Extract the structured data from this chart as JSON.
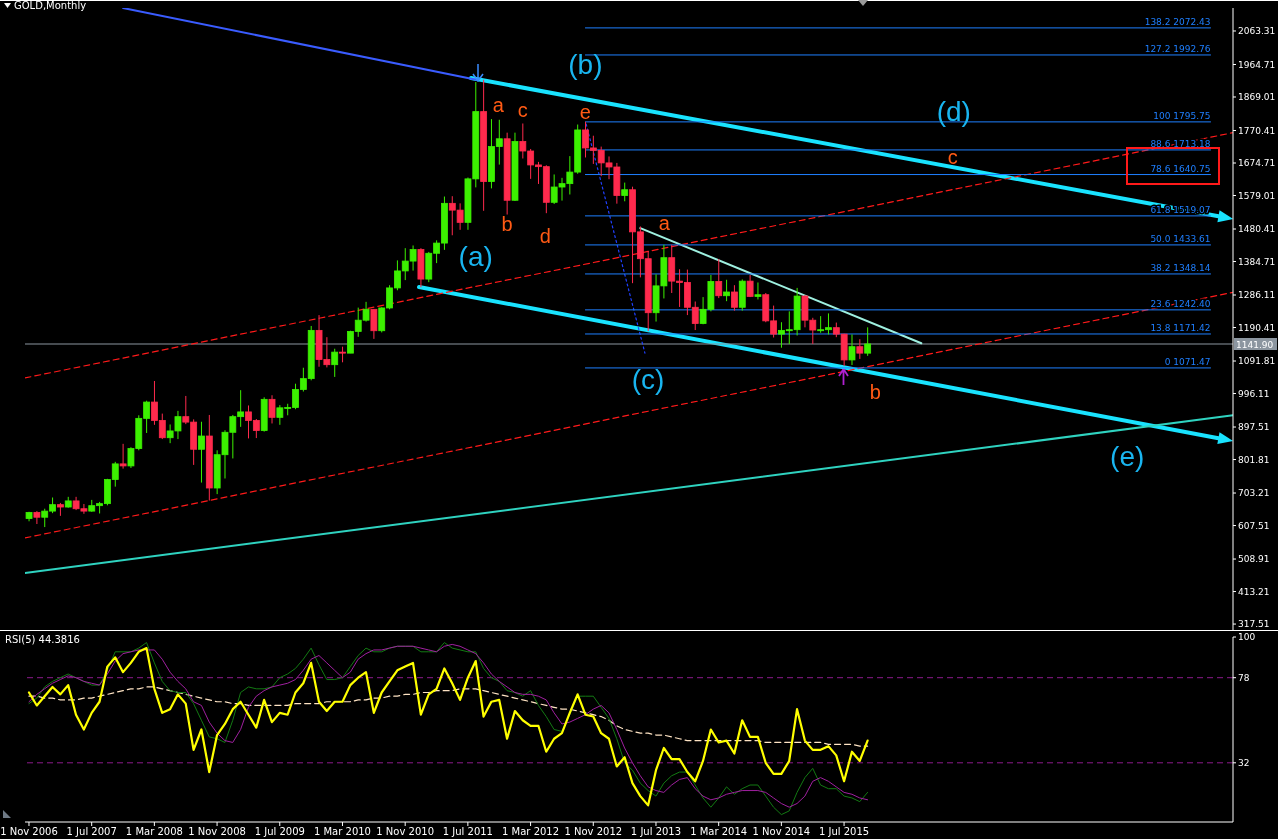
{
  "chart_data": [
    {
      "type": "candlestick",
      "title": "GOLD,Monthly",
      "x": [
        "2006-11",
        "2006-12",
        "2007-01",
        "2007-02",
        "2007-03",
        "2007-04",
        "2007-05",
        "2007-06",
        "2007-07",
        "2007-08",
        "2007-09",
        "2007-10",
        "2007-11",
        "2007-12",
        "2008-01",
        "2008-02",
        "2008-03",
        "2008-04",
        "2008-05",
        "2008-06",
        "2008-07",
        "2008-08",
        "2008-09",
        "2008-10",
        "2008-11",
        "2008-12",
        "2009-01",
        "2009-02",
        "2009-03",
        "2009-04",
        "2009-05",
        "2009-06",
        "2009-07",
        "2009-08",
        "2009-09",
        "2009-10",
        "2009-11",
        "2009-12",
        "2010-01",
        "2010-02",
        "2010-03",
        "2010-04",
        "2010-05",
        "2010-06",
        "2010-07",
        "2010-08",
        "2010-09",
        "2010-10",
        "2010-11",
        "2010-12",
        "2011-01",
        "2011-02",
        "2011-03",
        "2011-04",
        "2011-05",
        "2011-06",
        "2011-07",
        "2011-08",
        "2011-09",
        "2011-10",
        "2011-11",
        "2011-12",
        "2012-01",
        "2012-02",
        "2012-03",
        "2012-04",
        "2012-05",
        "2012-06",
        "2012-07",
        "2012-08",
        "2012-09",
        "2012-10",
        "2012-11",
        "2012-12",
        "2013-01",
        "2013-02",
        "2013-03",
        "2013-04",
        "2013-05",
        "2013-06",
        "2013-07",
        "2013-08",
        "2013-09",
        "2013-10",
        "2013-11",
        "2013-12",
        "2014-01",
        "2014-02",
        "2014-03",
        "2014-04",
        "2014-05",
        "2014-06",
        "2014-07",
        "2014-08",
        "2014-09",
        "2014-10",
        "2014-11",
        "2014-12",
        "2015-01",
        "2015-02",
        "2015-03",
        "2015-04",
        "2015-05",
        "2015-06",
        "2015-07",
        "2015-08",
        "2015-09",
        "2015-10"
      ],
      "ohlc": [
        [
          628,
          648,
          620,
          646
        ],
        [
          646,
          650,
          612,
          632
        ],
        [
          632,
          657,
          603,
          650
        ],
        [
          650,
          690,
          644,
          669
        ],
        [
          669,
          674,
          636,
          662
        ],
        [
          662,
          692,
          660,
          680
        ],
        [
          680,
          692,
          653,
          657
        ],
        [
          657,
          671,
          642,
          650
        ],
        [
          650,
          683,
          648,
          666
        ],
        [
          666,
          677,
          643,
          672
        ],
        [
          672,
          745,
          667,
          743
        ],
        [
          743,
          795,
          722,
          789
        ],
        [
          789,
          848,
          775,
          783
        ],
        [
          783,
          838,
          777,
          834
        ],
        [
          834,
          932,
          829,
          923
        ],
        [
          923,
          975,
          880,
          971
        ],
        [
          971,
          1033,
          904,
          917
        ],
        [
          917,
          937,
          862,
          866
        ],
        [
          866,
          905,
          850,
          886
        ],
        [
          886,
          945,
          862,
          928
        ],
        [
          928,
          989,
          906,
          912
        ],
        [
          912,
          920,
          786,
          832
        ],
        [
          832,
          913,
          734,
          871
        ],
        [
          871,
          933,
          681,
          718
        ],
        [
          718,
          829,
          700,
          816
        ],
        [
          816,
          888,
          746,
          882
        ],
        [
          882,
          933,
          805,
          928
        ],
        [
          928,
          1006,
          898,
          942
        ],
        [
          942,
          961,
          864,
          917
        ],
        [
          917,
          921,
          865,
          887
        ],
        [
          887,
          985,
          884,
          979
        ],
        [
          979,
          991,
          908,
          926
        ],
        [
          926,
          962,
          904,
          954
        ],
        [
          954,
          966,
          932,
          955
        ],
        [
          955,
          1025,
          950,
          1008
        ],
        [
          1008,
          1072,
          1002,
          1040
        ],
        [
          1040,
          1195,
          1035,
          1182
        ],
        [
          1182,
          1227,
          1075,
          1096
        ],
        [
          1096,
          1162,
          1073,
          1081
        ],
        [
          1081,
          1128,
          1045,
          1118
        ],
        [
          1118,
          1134,
          1088,
          1115
        ],
        [
          1115,
          1181,
          1115,
          1179
        ],
        [
          1179,
          1249,
          1163,
          1212
        ],
        [
          1212,
          1266,
          1208,
          1244
        ],
        [
          1244,
          1244,
          1157,
          1181
        ],
        [
          1181,
          1250,
          1176,
          1248
        ],
        [
          1248,
          1315,
          1244,
          1307
        ],
        [
          1307,
          1388,
          1300,
          1357
        ],
        [
          1357,
          1424,
          1330,
          1386
        ],
        [
          1386,
          1432,
          1358,
          1420
        ],
        [
          1420,
          1424,
          1309,
          1333
        ],
        [
          1333,
          1413,
          1324,
          1409
        ],
        [
          1409,
          1447,
          1380,
          1439
        ],
        [
          1439,
          1576,
          1419,
          1556
        ],
        [
          1556,
          1577,
          1462,
          1536
        ],
        [
          1536,
          1556,
          1478,
          1500
        ],
        [
          1500,
          1632,
          1478,
          1628
        ],
        [
          1628,
          1913,
          1603,
          1826
        ],
        [
          1826,
          1920,
          1534,
          1620
        ],
        [
          1620,
          1804,
          1600,
          1723
        ],
        [
          1723,
          1802,
          1670,
          1746
        ],
        [
          1746,
          1764,
          1523,
          1565
        ],
        [
          1565,
          1764,
          1563,
          1738
        ],
        [
          1738,
          1791,
          1688,
          1710
        ],
        [
          1710,
          1716,
          1628,
          1669
        ],
        [
          1669,
          1678,
          1613,
          1664
        ],
        [
          1664,
          1668,
          1527,
          1559
        ],
        [
          1559,
          1641,
          1554,
          1604
        ],
        [
          1604,
          1631,
          1564,
          1614
        ],
        [
          1614,
          1695,
          1582,
          1648
        ],
        [
          1648,
          1788,
          1643,
          1772
        ],
        [
          1772,
          1796,
          1691,
          1719
        ],
        [
          1719,
          1755,
          1672,
          1712
        ],
        [
          1712,
          1723,
          1636,
          1675
        ],
        [
          1675,
          1694,
          1627,
          1663
        ],
        [
          1663,
          1675,
          1555,
          1579
        ],
        [
          1579,
          1617,
          1562,
          1596
        ],
        [
          1596,
          1605,
          1321,
          1472
        ],
        [
          1472,
          1488,
          1338,
          1393
        ],
        [
          1393,
          1416,
          1180,
          1234
        ],
        [
          1234,
          1347,
          1208,
          1313
        ],
        [
          1313,
          1434,
          1276,
          1396
        ],
        [
          1396,
          1434,
          1292,
          1327
        ],
        [
          1327,
          1362,
          1251,
          1323
        ],
        [
          1323,
          1361,
          1227,
          1250
        ],
        [
          1250,
          1267,
          1183,
          1202
        ],
        [
          1202,
          1280,
          1200,
          1244
        ],
        [
          1244,
          1345,
          1238,
          1326
        ],
        [
          1326,
          1392,
          1277,
          1284
        ],
        [
          1284,
          1331,
          1268,
          1295
        ],
        [
          1295,
          1315,
          1240,
          1250
        ],
        [
          1250,
          1332,
          1240,
          1327
        ],
        [
          1327,
          1345,
          1280,
          1282
        ],
        [
          1282,
          1323,
          1273,
          1287
        ],
        [
          1287,
          1292,
          1206,
          1210
        ],
        [
          1210,
          1255,
          1161,
          1171
        ],
        [
          1171,
          1206,
          1131,
          1182
        ],
        [
          1182,
          1238,
          1142,
          1184
        ],
        [
          1184,
          1307,
          1167,
          1283
        ],
        [
          1283,
          1286,
          1191,
          1212
        ],
        [
          1212,
          1219,
          1142,
          1183
        ],
        [
          1183,
          1224,
          1175,
          1184
        ],
        [
          1184,
          1232,
          1170,
          1190
        ],
        [
          1190,
          1205,
          1162,
          1171
        ],
        [
          1171,
          1172,
          1077,
          1095
        ],
        [
          1095,
          1170,
          1080,
          1134
        ],
        [
          1134,
          1156,
          1098,
          1115
        ],
        [
          1115,
          1191,
          1107,
          1142
        ]
      ],
      "colors": [
        "#3cf000",
        "#ff2a4d",
        "#3cf000",
        "#3cf000",
        "#ff2a4d",
        "#3cf000",
        "#ff2a4d",
        "#ff2a4d",
        "#3cf000",
        "#3cf000",
        "#3cf000",
        "#3cf000",
        "#ff2a4d",
        "#3cf000",
        "#3cf000",
        "#3cf000",
        "#ff2a4d",
        "#ff2a4d",
        "#3cf000",
        "#3cf000",
        "#ff2a4d",
        "#ff2a4d",
        "#3cf000",
        "#ff2a4d",
        "#3cf000",
        "#3cf000",
        "#3cf000",
        "#3cf000",
        "#ff2a4d",
        "#ff2a4d",
        "#3cf000",
        "#ff2a4d",
        "#3cf000",
        "#3cf000",
        "#3cf000",
        "#3cf000",
        "#3cf000",
        "#ff2a4d",
        "#ff2a4d",
        "#3cf000",
        "#ff2a4d",
        "#3cf000",
        "#3cf000",
        "#3cf000",
        "#ff2a4d",
        "#3cf000",
        "#3cf000",
        "#3cf000",
        "#3cf000",
        "#3cf000",
        "#ff2a4d",
        "#3cf000",
        "#3cf000",
        "#3cf000",
        "#ff2a4d",
        "#ff2a4d",
        "#3cf000",
        "#3cf000",
        "#ff2a4d",
        "#3cf000",
        "#3cf000",
        "#ff2a4d",
        "#3cf000",
        "#ff2a4d",
        "#ff2a4d",
        "#ff2a4d",
        "#ff2a4d",
        "#3cf000",
        "#3cf000",
        "#3cf000",
        "#3cf000",
        "#ff2a4d",
        "#ff2a4d",
        "#ff2a4d",
        "#ff2a4d",
        "#ff2a4d",
        "#3cf000",
        "#ff2a4d",
        "#ff2a4d",
        "#ff2a4d",
        "#3cf000",
        "#3cf000",
        "#ff2a4d",
        "#ff2a4d",
        "#ff2a4d",
        "#ff2a4d",
        "#3cf000",
        "#3cf000",
        "#ff2a4d",
        "#3cf000",
        "#ff2a4d",
        "#3cf000",
        "#ff2a4d",
        "#3cf000",
        "#ff2a4d",
        "#ff2a4d",
        "#3cf000",
        "#3cf000",
        "#3cf000",
        "#ff2a4d",
        "#ff2a4d",
        "#3cf000",
        "#3cf000",
        "#ff2a4d",
        "#ff2a4d",
        "#3cf000",
        "#ff2a4d",
        "#3cf000"
      ],
      "series": [
        {
          "type": "line",
          "x": [
            "2007-11-01",
            "2011-08-08"
          ],
          "values": [
            2131,
            1919
          ],
          "color": "#3a5cff"
        },
        {
          "type": "line",
          "x": [
            "2006-10-16",
            "2019-08-20"
          ],
          "values": [
            1042,
            1764
          ],
          "color": "#ff1a1a",
          "line_style": "dashed"
        },
        {
          "type": "line",
          "x": [
            "2006-10-16",
            "2019-08-20"
          ],
          "values": [
            571,
            1294
          ],
          "color": "#ff1a1a",
          "line_style": "dashed"
        },
        {
          "type": "line",
          "x": [
            "2006-10-16",
            "2019-08-20"
          ],
          "values": [
            468,
            932
          ],
          "color": "#2fd3c0"
        },
        {
          "type": "line",
          "x": [
            "2013-05-01",
            "2016-04-27"
          ],
          "values": [
            1483,
            1144
          ],
          "color": "#9ef0e0"
        },
        {
          "type": "line",
          "x": [
            "2012-10-04",
            "2013-05-19"
          ],
          "values": [
            1789,
            1115
          ],
          "color": "#2040ff",
          "line_style": "dotted"
        },
        {
          "type": "line",
          "name": "138.2 2072.43",
          "x": [
            "2012-10",
            "2019-05-24"
          ],
          "values": [
            2072.43,
            2072.43
          ],
          "color": "#1e7fff"
        },
        {
          "type": "line",
          "name": "127.2 1992.76",
          "x": [
            "2012-10",
            "2019-05-24"
          ],
          "values": [
            1992.76,
            1992.76
          ],
          "color": "#1e7fff"
        },
        {
          "type": "line",
          "name": "100 1795.75",
          "x": [
            "2012-10",
            "2019-05-24"
          ],
          "values": [
            1795.75,
            1795.75
          ],
          "color": "#1e7fff"
        },
        {
          "type": "line",
          "name": "88.6 1713.18",
          "x": [
            "2012-10",
            "2019-05-24"
          ],
          "values": [
            1713.18,
            1713.18
          ],
          "color": "#1e7fff"
        },
        {
          "type": "line",
          "name": "78.6 1640.75",
          "x": [
            "2012-10",
            "2019-05-24"
          ],
          "values": [
            1640.75,
            1640.75
          ],
          "color": "#1e7fff"
        },
        {
          "type": "line",
          "name": "61.8 1519.07",
          "x": [
            "2012-10",
            "2019-05-24"
          ],
          "values": [
            1519.07,
            1519.07
          ],
          "color": "#1e7fff"
        },
        {
          "type": "line",
          "name": "50.0 1433.61",
          "x": [
            "2012-10",
            "2019-05-24"
          ],
          "values": [
            1433.61,
            1433.61
          ],
          "color": "#1e7fff"
        },
        {
          "type": "line",
          "name": "38.2 1348.14",
          "x": [
            "2012-10",
            "2019-05-24"
          ],
          "values": [
            1348.14,
            1348.14
          ],
          "color": "#1e7fff"
        },
        {
          "type": "line",
          "name": "23.6 1242.40",
          "x": [
            "2012-10",
            "2019-05-24"
          ],
          "values": [
            1242.4,
            1242.4
          ],
          "color": "#1e7fff"
        },
        {
          "type": "line",
          "name": "13.8 1171.42",
          "x": [
            "2012-10",
            "2019-05-24"
          ],
          "values": [
            1171.42,
            1171.42
          ],
          "color": "#1e7fff"
        },
        {
          "type": "line",
          "name": "0 1071.47",
          "x": [
            "2012-10",
            "2019-05-24"
          ],
          "values": [
            1071.47,
            1071.47
          ],
          "color": "#1e7fff"
        }
      ],
      "ref_lines": [
        {
          "axis": "y",
          "value": 1141.9,
          "label": "1141.90",
          "color": "#8c96a0"
        }
      ],
      "annotations": [
        "(a)",
        "(b)",
        "(c)",
        "(d)",
        "(e)",
        "a",
        "b",
        "c",
        "d",
        {
          "text": "e",
          "x": "2012-10",
          "y": 1796
        },
        {
          "text": "a",
          "x": "2013-05",
          "y": 1483
        },
        "b",
        "c"
      ],
      "xlim": [
        "2006-10-16",
        "2019-08-20"
      ],
      "ylim": [
        300,
        2131
      ],
      "yticks": [
        2063.31,
        1964.71,
        1869.01,
        1770.41,
        1674.71,
        1579.01,
        1480.41,
        1384.71,
        1286.11,
        1190.41,
        1091.81,
        996.11,
        897.51,
        801.81,
        703.21,
        607.51,
        508.91,
        413.21,
        317.51
      ],
      "tick_labels": "y"
    },
    {
      "type": "line",
      "title": "RSI(5) 44.3816",
      "x": [
        "2006-11",
        "2006-12",
        "2007-01",
        "2007-02",
        "2007-03",
        "2007-04",
        "2007-05",
        "2007-06",
        "2007-07",
        "2007-08",
        "2007-09",
        "2007-10",
        "2007-11",
        "2007-12",
        "2008-01",
        "2008-02",
        "2008-03",
        "2008-04",
        "2008-05",
        "2008-06",
        "2008-07",
        "2008-08",
        "2008-09",
        "2008-10",
        "2008-11",
        "2008-12",
        "2009-01",
        "2009-02",
        "2009-03",
        "2009-04",
        "2009-05",
        "2009-06",
        "2009-07",
        "2009-08",
        "2009-09",
        "2009-10",
        "2009-11",
        "2009-12",
        "2010-01",
        "2010-02",
        "2010-03",
        "2010-04",
        "2010-05",
        "2010-06",
        "2010-07",
        "2010-08",
        "2010-09",
        "2010-10",
        "2010-11",
        "2010-12",
        "2011-01",
        "2011-02",
        "2011-03",
        "2011-04",
        "2011-05",
        "2011-06",
        "2011-07",
        "2011-08",
        "2011-09",
        "2011-10",
        "2011-11",
        "2011-12",
        "2012-01",
        "2012-02",
        "2012-03",
        "2012-04",
        "2012-05",
        "2012-06",
        "2012-07",
        "2012-08",
        "2012-09",
        "2012-10",
        "2012-11",
        "2012-12",
        "2013-01",
        "2013-02",
        "2013-03",
        "2013-04",
        "2013-05",
        "2013-06",
        "2013-07",
        "2013-08",
        "2013-09",
        "2013-10",
        "2013-11",
        "2013-12",
        "2014-01",
        "2014-02",
        "2014-03",
        "2014-04",
        "2014-05",
        "2014-06",
        "2014-07",
        "2014-08",
        "2014-09",
        "2014-10",
        "2014-11",
        "2014-12",
        "2015-01",
        "2015-02",
        "2015-03",
        "2015-04",
        "2015-05",
        "2015-06",
        "2015-07",
        "2015-08",
        "2015-09",
        "2015-10"
      ],
      "series": [
        {
          "color": "#ffe4c4",
          "line_style": "dashed",
          "values": [
            68,
            68,
            67,
            67,
            66,
            66,
            66,
            67,
            67,
            68,
            69,
            70,
            71,
            72,
            72,
            73,
            73,
            72,
            71,
            70,
            69,
            68,
            67,
            66,
            65,
            65,
            64,
            64,
            63,
            63,
            63,
            63,
            63,
            63,
            64,
            64,
            64,
            64,
            65,
            65,
            65,
            65,
            66,
            66,
            67,
            67,
            68,
            68,
            69,
            69,
            70,
            70,
            71,
            71,
            71,
            72,
            72,
            72,
            71,
            70,
            69,
            68,
            67,
            66,
            65,
            64,
            63,
            62,
            61,
            61,
            60,
            59,
            58,
            57,
            55,
            52,
            50,
            49,
            48,
            48,
            47,
            47,
            46,
            45,
            44,
            44,
            44,
            44,
            44,
            44,
            44,
            44,
            44,
            44,
            43,
            43,
            43,
            43,
            43,
            43,
            43,
            43,
            42,
            42,
            42,
            42,
            41,
            41
          ]
        },
        {
          "color": "#137a13",
          "values": [
            64,
            67,
            73,
            76,
            78,
            80,
            78,
            76,
            74,
            74,
            82,
            92,
            92,
            92,
            94,
            97,
            86,
            76,
            71,
            70,
            70,
            64,
            55,
            46,
            45,
            43,
            55,
            70,
            73,
            72,
            72,
            73,
            78,
            80,
            83,
            88,
            94,
            85,
            77,
            77,
            78,
            84,
            90,
            94,
            92,
            92,
            94,
            95,
            95,
            95,
            92,
            92,
            92,
            97,
            94,
            93,
            92,
            92,
            83,
            78,
            76,
            71,
            70,
            68,
            71,
            63,
            57,
            50,
            49,
            58,
            68,
            68,
            68,
            62,
            56,
            45,
            32,
            28,
            21,
            17,
            14,
            21,
            25,
            27,
            27,
            20,
            13,
            8,
            13,
            19,
            15,
            18,
            20,
            20,
            14,
            8,
            4,
            6,
            16,
            24,
            29,
            20,
            18,
            18,
            14,
            13,
            11,
            16
          ]
        },
        {
          "color": "#a020a0",
          "values": [
            65,
            69,
            72,
            75,
            77,
            79,
            78,
            76,
            75,
            74,
            80,
            87,
            91,
            92,
            93,
            93,
            93,
            88,
            81,
            76,
            72,
            65,
            63,
            54,
            48,
            44,
            43,
            50,
            62,
            68,
            71,
            73,
            74,
            75,
            77,
            82,
            88,
            90,
            86,
            82,
            78,
            81,
            88,
            91,
            93,
            93,
            94,
            95,
            95,
            95,
            94,
            93,
            92,
            95,
            96,
            95,
            93,
            91,
            86,
            80,
            76,
            73,
            70,
            69,
            69,
            68,
            66,
            59,
            53,
            54,
            56,
            58,
            61,
            63,
            59,
            50,
            40,
            32,
            25,
            19,
            17,
            16,
            20,
            23,
            24,
            18,
            14,
            12,
            13,
            15,
            16,
            17,
            17,
            17,
            16,
            13,
            10,
            8,
            10,
            14,
            22,
            24,
            22,
            19,
            16,
            15,
            13,
            12
          ]
        },
        {
          "color": "#ffff00",
          "values": [
            70,
            63,
            68,
            73,
            69,
            74,
            58,
            50,
            59,
            65,
            84,
            89,
            81,
            86,
            92,
            94,
            72,
            59,
            61,
            69,
            64,
            39,
            50,
            27,
            47,
            53,
            61,
            65,
            58,
            51,
            66,
            54,
            59,
            58,
            70,
            75,
            86,
            65,
            60,
            65,
            65,
            74,
            78,
            81,
            59,
            70,
            76,
            82,
            84,
            86,
            58,
            69,
            72,
            83,
            75,
            66,
            78,
            87,
            57,
            65,
            66,
            45,
            60,
            55,
            52,
            52,
            38,
            45,
            48,
            59,
            69,
            58,
            57,
            48,
            45,
            30,
            35,
            21,
            14,
            9,
            28,
            40,
            34,
            34,
            27,
            22,
            33,
            50,
            43,
            44,
            37,
            55,
            46,
            46,
            32,
            26,
            26,
            33,
            61,
            44,
            39,
            39,
            41,
            36,
            22,
            38,
            33,
            44
          ]
        }
      ],
      "ref_lines": [
        {
          "axis": "y",
          "value": 78,
          "color": "#8b1a8b",
          "line_style": "dashed"
        },
        {
          "axis": "y",
          "value": 32,
          "color": "#8b1a8b",
          "line_style": "dashed"
        }
      ],
      "xlim": [
        "2006-10-16",
        "2019-08-20"
      ],
      "xticks": [
        {
          "value": "2006-11",
          "label": "1 Nov 2006"
        },
        {
          "value": "2007-07",
          "label": "1 Jul 2007"
        },
        {
          "value": "2008-03",
          "label": "1 Mar 2008"
        },
        {
          "value": "2008-11",
          "label": "1 Nov 2008"
        },
        {
          "value": "2009-07",
          "label": "1 Jul 2009"
        },
        {
          "value": "2010-03",
          "label": "1 Mar 2010"
        },
        {
          "value": "2010-11",
          "label": "1 Nov 2010"
        },
        {
          "value": "2011-07",
          "label": "1 Jul 2011"
        },
        {
          "value": "2012-03",
          "label": "1 Mar 2012"
        },
        {
          "value": "2012-11",
          "label": "1 Nov 2012"
        },
        {
          "value": "2013-07",
          "label": "1 Jul 2013"
        },
        {
          "value": "2014-03",
          "label": "1 Mar 2014"
        },
        {
          "value": "2014-11",
          "label": "1 Nov 2014"
        },
        {
          "value": "2015-07",
          "label": "1 Jul 2015"
        }
      ],
      "ylim": [
        0,
        100
      ],
      "yticks": [
        100,
        78,
        32
      ]
    }
  ]
}
